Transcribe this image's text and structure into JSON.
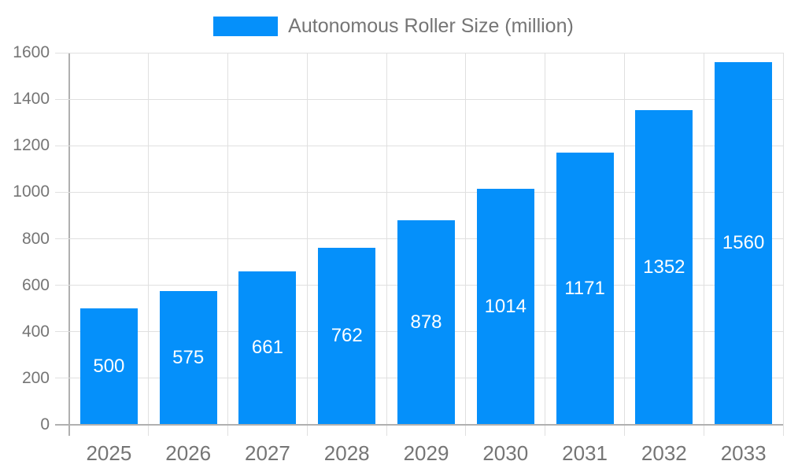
{
  "legend": {
    "label": "Autonomous Roller Size (million)"
  },
  "colors": {
    "bar": "#0590FA",
    "bar_label_text": "#FFFFFF",
    "legend_text": "#757575",
    "axis_text": "#757575",
    "gridline": "#E0E0E0",
    "axis_line": "#B0B0B0",
    "background": "#FFFFFF"
  },
  "chart_data": {
    "type": "bar",
    "title": "Autonomous Roller Size (million)",
    "categories": [
      "2025",
      "2026",
      "2027",
      "2028",
      "2029",
      "2030",
      "2031",
      "2032",
      "2033"
    ],
    "values": [
      500,
      575,
      661,
      762,
      878,
      1014,
      1171,
      1352,
      1560
    ],
    "series": [
      {
        "name": "Autonomous Roller Size (million)",
        "values": [
          500,
          575,
          661,
          762,
          878,
          1014,
          1171,
          1352,
          1560
        ]
      }
    ],
    "xlabel": "",
    "ylabel": "",
    "ylim": [
      0,
      1600
    ],
    "ytick_step": 200,
    "y_ticks": [
      "0",
      "200",
      "400",
      "600",
      "800",
      "1000",
      "1200",
      "1400",
      "1600"
    ],
    "grid": true,
    "legend_position": "top",
    "value_labels": "inside-center"
  }
}
